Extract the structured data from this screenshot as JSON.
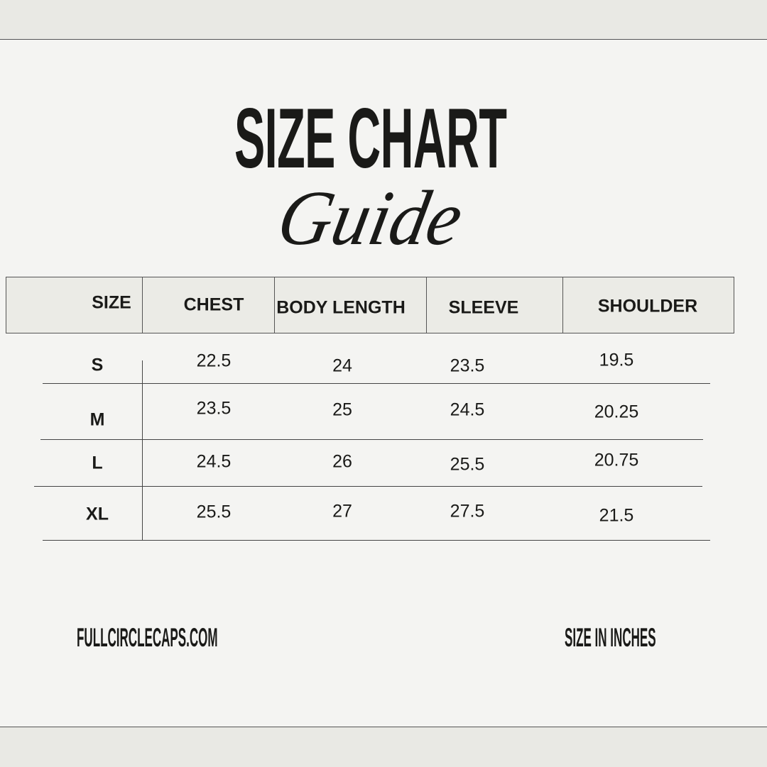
{
  "title": {
    "main": "SIZE CHART",
    "script": "Guide"
  },
  "table": {
    "headers": [
      "SIZE",
      "CHEST",
      "BODY LENGTH",
      "SLEEVE",
      "SHOULDER"
    ],
    "rows": [
      [
        "S",
        "22.5",
        "24",
        "23.5",
        "19.5"
      ],
      [
        "M",
        "23.5",
        "25",
        "24.5",
        "20.25"
      ],
      [
        "L",
        "24.5",
        "26",
        "25.5",
        "20.75"
      ],
      [
        "XL",
        "25.5",
        "27",
        "27.5",
        "21.5"
      ]
    ]
  },
  "footer": {
    "website": "FULLCIRCLECAPS.COM",
    "unit_note": "SIZE IN INCHES"
  },
  "colors": {
    "background": "#f4f4f2",
    "header_fill": "#ebebe6",
    "text": "#1a1a18"
  }
}
